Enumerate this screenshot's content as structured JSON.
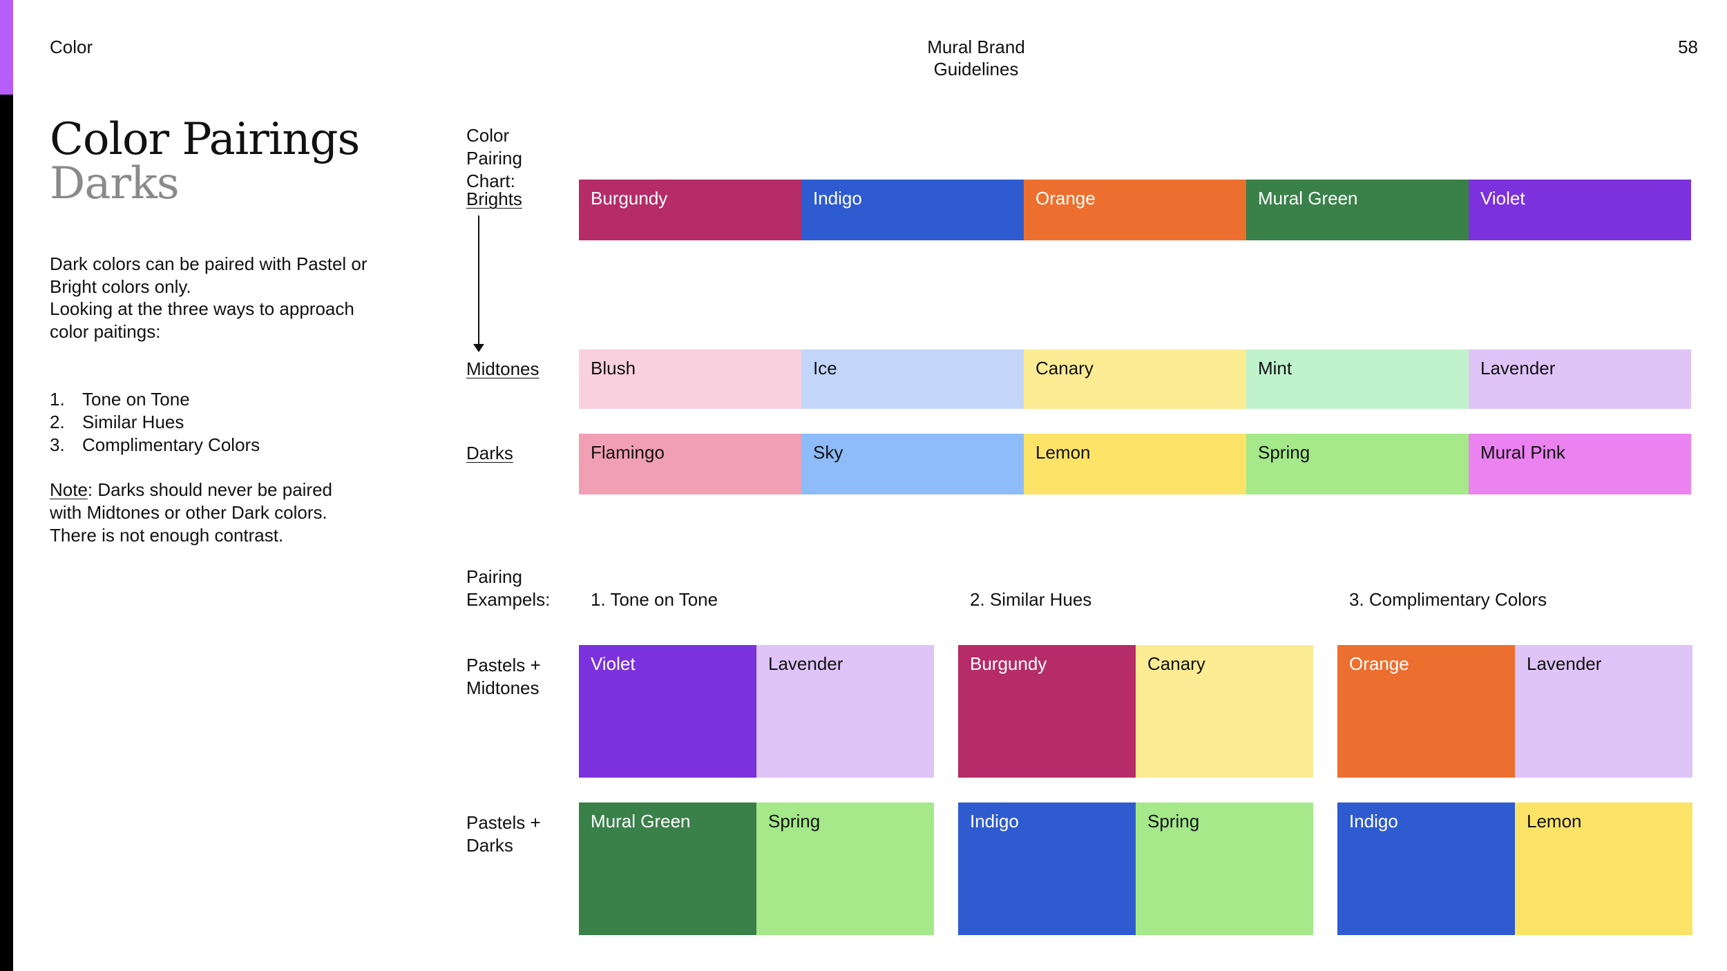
{
  "header": {
    "section": "Color",
    "doc_title": "Mural Brand Guidelines",
    "page_number": "58"
  },
  "title": "Color Pairings",
  "subtitle": "Darks",
  "intro": {
    "p1": "Dark colors can be paired with Pastel or Bright colors only.",
    "p2": "Looking at the three ways to approach color paitings:",
    "list": [
      {
        "num": "1.",
        "text": "Tone on Tone"
      },
      {
        "num": "2.",
        "text": "Similar Hues"
      },
      {
        "num": "3.",
        "text": "Complimentary Colors"
      }
    ],
    "note_label": "Note",
    "note_text": ": Darks should never be paired with Midtones or other Dark colors. There is not enough contrast."
  },
  "chart": {
    "label": "Color Pairing Chart:",
    "rows": [
      {
        "label": "Brights",
        "swatches": [
          {
            "name": "Burgundy",
            "color": "#b52c68",
            "text_color": "#ffffff"
          },
          {
            "name": "Indigo",
            "color": "#2f5bd0",
            "text_color": "#ffffff"
          },
          {
            "name": "Orange",
            "color": "#ec6f2f",
            "text_color": "#ffffff"
          },
          {
            "name": "Mural Green",
            "color": "#3a8049",
            "text_color": "#ffffff"
          },
          {
            "name": "Violet",
            "color": "#7b31dc",
            "text_color": "#ffffff"
          }
        ]
      },
      {
        "label": "Midtones",
        "swatches": [
          {
            "name": "Blush",
            "color": "#f8d0de",
            "text_color": "#111111"
          },
          {
            "name": "Ice",
            "color": "#c3d6fa",
            "text_color": "#111111"
          },
          {
            "name": "Canary",
            "color": "#fbec94",
            "text_color": "#111111"
          },
          {
            "name": "Mint",
            "color": "#c0f2cc",
            "text_color": "#111111"
          },
          {
            "name": "Lavender",
            "color": "#dec4f7",
            "text_color": "#111111"
          }
        ]
      },
      {
        "label": "Darks",
        "swatches": [
          {
            "name": "Flamingo",
            "color": "#f19fb4",
            "text_color": "#111111"
          },
          {
            "name": "Sky",
            "color": "#8dbcf8",
            "text_color": "#111111"
          },
          {
            "name": "Lemon",
            "color": "#fbe368",
            "text_color": "#111111"
          },
          {
            "name": "Spring",
            "color": "#a5e98a",
            "text_color": "#111111"
          },
          {
            "name": "Mural Pink",
            "color": "#ea82f0",
            "text_color": "#111111"
          }
        ]
      }
    ]
  },
  "examples": {
    "label": "Pairing Exampels:",
    "columns": [
      "1. Tone on Tone",
      "2. Similar Hues",
      "3. Complimentary Colors"
    ],
    "rows": [
      {
        "label": "Pastels + Midtones",
        "pairs": [
          [
            {
              "name": "Violet",
              "color": "#7b31dc",
              "text_color": "#ffffff"
            },
            {
              "name": "Lavender",
              "color": "#dec4f7",
              "text_color": "#111111"
            }
          ],
          [
            {
              "name": "Burgundy",
              "color": "#b52c68",
              "text_color": "#ffffff"
            },
            {
              "name": "Canary",
              "color": "#fbec94",
              "text_color": "#111111"
            }
          ],
          [
            {
              "name": "Orange",
              "color": "#ec6f2f",
              "text_color": "#ffffff"
            },
            {
              "name": "Lavender",
              "color": "#dec4f7",
              "text_color": "#111111"
            }
          ]
        ]
      },
      {
        "label": "Pastels + Darks",
        "pairs": [
          [
            {
              "name": "Mural Green",
              "color": "#3a8049",
              "text_color": "#ffffff"
            },
            {
              "name": "Spring",
              "color": "#a5e98a",
              "text_color": "#111111"
            }
          ],
          [
            {
              "name": "Indigo",
              "color": "#2f5bd0",
              "text_color": "#ffffff"
            },
            {
              "name": "Spring",
              "color": "#a5e98a",
              "text_color": "#111111"
            }
          ],
          [
            {
              "name": "Indigo",
              "color": "#2f5bd0",
              "text_color": "#ffffff"
            },
            {
              "name": "Lemon",
              "color": "#fbe368",
              "text_color": "#111111"
            }
          ]
        ]
      }
    ]
  }
}
